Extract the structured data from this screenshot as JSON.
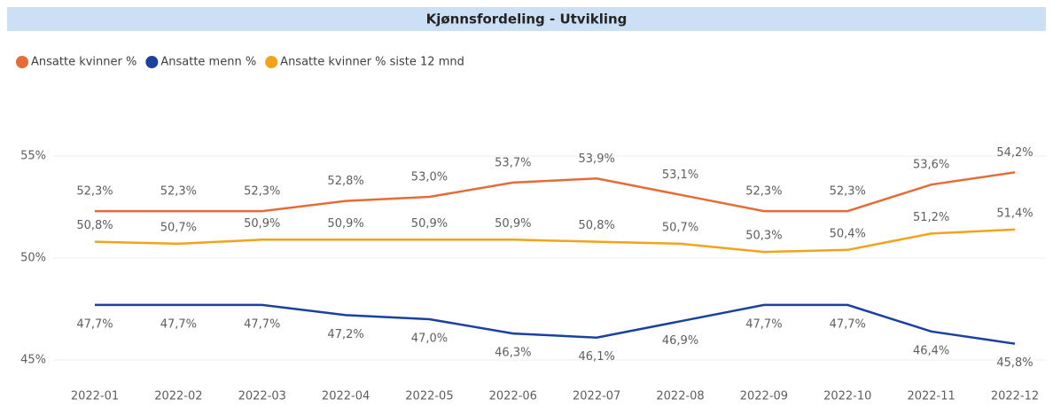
{
  "chart_data": {
    "type": "line",
    "title": "Kjønnsfordeling - Utvikling",
    "categories": [
      "2022-01",
      "2022-02",
      "2022-03",
      "2022-04",
      "2022-05",
      "2022-06",
      "2022-07",
      "2022-08",
      "2022-09",
      "2022-10",
      "2022-11",
      "2022-12"
    ],
    "series": [
      {
        "name": "Ansatte kvinner %",
        "color": "#E66C37",
        "values": [
          52.3,
          52.3,
          52.3,
          52.8,
          53.0,
          53.7,
          53.9,
          53.1,
          52.3,
          52.3,
          53.6,
          54.2
        ],
        "value_labels": [
          "52,3%",
          "52,3%",
          "52,3%",
          "52,8%",
          "53,0%",
          "53,7%",
          "53,9%",
          "53,1%",
          "52,3%",
          "52,3%",
          "53,6%",
          "54,2%"
        ]
      },
      {
        "name": "Ansatte menn %",
        "color": "#1A40A0",
        "values": [
          47.7,
          47.7,
          47.7,
          47.2,
          47.0,
          46.3,
          46.1,
          46.9,
          47.7,
          47.7,
          46.4,
          45.8
        ],
        "value_labels": [
          "47,7%",
          "47,7%",
          "47,7%",
          "47,2%",
          "47,0%",
          "46,3%",
          "46,1%",
          "46,9%",
          "47,7%",
          "47,7%",
          "46,4%",
          "45,8%"
        ]
      },
      {
        "name": "Ansatte kvinner % siste 12 mnd",
        "color": "#F2A31B",
        "values": [
          50.8,
          50.7,
          50.9,
          50.9,
          50.9,
          50.9,
          50.8,
          50.7,
          50.3,
          50.4,
          51.2,
          51.4
        ],
        "value_labels": [
          "50,8%",
          "50,7%",
          "50,9%",
          "50,9%",
          "50,9%",
          "50,9%",
          "50,8%",
          "50,7%",
          "50,3%",
          "50,4%",
          "51,2%",
          "51,4%"
        ]
      }
    ],
    "ylim": [
      44.5,
      57.5
    ],
    "yticks": [
      {
        "value": 45,
        "label": "45%"
      },
      {
        "value": 50,
        "label": "50%"
      },
      {
        "value": 55,
        "label": "55%"
      }
    ],
    "grid": true,
    "legend": "top-left"
  }
}
